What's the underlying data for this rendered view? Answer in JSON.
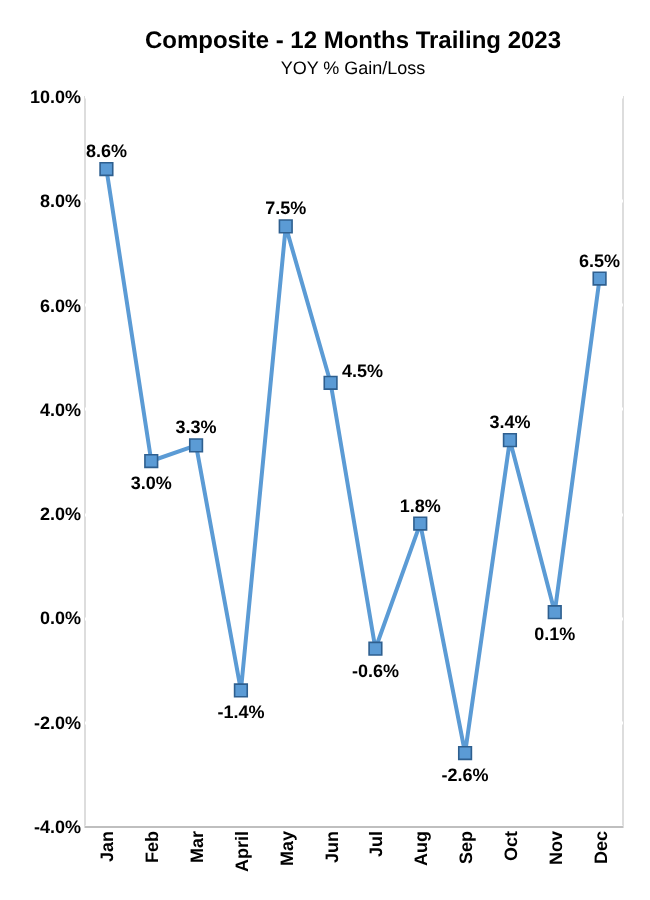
{
  "chart_data": {
    "type": "line",
    "title": "Composite - 12 Months Trailing 2023",
    "subtitle": "YOY % Gain/Loss",
    "categories": [
      "Jan",
      "Feb",
      "Mar",
      "April",
      "May",
      "Jun",
      "Jul",
      "Aug",
      "Sep",
      "Oct",
      "Nov",
      "Dec"
    ],
    "series": [
      {
        "color": "#5b9bd5",
        "values": [
          8.6,
          3.0,
          3.3,
          -1.4,
          7.5,
          4.5,
          -0.6,
          1.8,
          -2.6,
          3.4,
          0.1,
          6.5
        ],
        "value_labels": [
          "8.6%",
          "3.0%",
          "3.3%",
          "-1.4%",
          "7.5%",
          "4.5%",
          "-0.6%",
          "1.8%",
          "-2.6%",
          "3.4%",
          "0.1%",
          "6.5%"
        ]
      }
    ],
    "ylim": [
      -4,
      10
    ],
    "yticks": [
      {
        "value": -4,
        "label": "-4.0%"
      },
      {
        "value": -2,
        "label": "-2.0%"
      },
      {
        "value": 0,
        "label": "0.0%"
      },
      {
        "value": 2,
        "label": "2.0%"
      },
      {
        "value": 4,
        "label": "4.0%"
      },
      {
        "value": 6,
        "label": "6.0%"
      },
      {
        "value": 8,
        "label": "8.0%"
      },
      {
        "value": 10,
        "label": "10.0%"
      }
    ],
    "grid": "y",
    "marker": "square",
    "line_style": "solid"
  }
}
